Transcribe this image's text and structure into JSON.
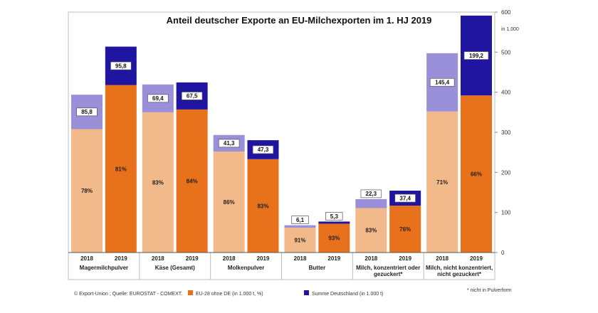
{
  "chart_data": {
    "type": "bar",
    "stacked": true,
    "title": "Anteil deutscher Exporte an EU-Milchexporten im 1. HJ 2019",
    "y_unit": "in 1.000",
    "ylim": [
      0,
      600
    ],
    "y_ticks": [
      0,
      100,
      200,
      300,
      400,
      500,
      600
    ],
    "y_axis_position": "right",
    "grid": false,
    "legend_position": "bottom",
    "groups": [
      {
        "label": "Magermilchpulver",
        "years": [
          "2018",
          "2019"
        ]
      },
      {
        "label": "Käse (Gesamt)",
        "years": [
          "2018",
          "2019"
        ]
      },
      {
        "label": "Molkenpulver",
        "years": [
          "2018",
          "2019"
        ]
      },
      {
        "label": "Butter",
        "years": [
          "2018",
          "2019"
        ]
      },
      {
        "label": "Milch, konzentriert oder gezuckert*",
        "years": [
          "2018",
          "2019"
        ]
      },
      {
        "label": "Milch, nicht konzentriert, nicht gezuckert*",
        "years": [
          "2018",
          "2019"
        ]
      }
    ],
    "categories": [
      "2018",
      "2019",
      "2018",
      "2019",
      "2018",
      "2019",
      "2018",
      "2019",
      "2018",
      "2019",
      "2018",
      "2019"
    ],
    "series": [
      {
        "name": "EU-28 ohne DE (in 1.000 t, %)",
        "values": [
          308,
          418,
          350,
          357,
          252,
          233,
          62,
          72,
          111,
          117,
          352,
          392
        ],
        "labels": [
          "78%",
          "81%",
          "83%",
          "84%",
          "86%",
          "83%",
          "91%",
          "93%",
          "83%",
          "76%",
          "71%",
          "66%"
        ],
        "colors": [
          "#f2b98a",
          "#e8711c"
        ]
      },
      {
        "name": "Summe Deutschland (in 1.000 t)",
        "values": [
          85.8,
          95.8,
          69.4,
          67.5,
          41.3,
          47.3,
          6.1,
          5.3,
          22.3,
          37.4,
          145.4,
          199.2
        ],
        "labels": [
          "85,8",
          "95,8",
          "69,4",
          "67,5",
          "41,3",
          "47,3",
          "6,1",
          "5,3",
          "22,3",
          "37,4",
          "145,4",
          "199,2"
        ],
        "colors": [
          "#9a8fd9",
          "#1f15a0"
        ]
      }
    ],
    "source": "© Export-Union ; Quelle: EUROSTAT  - COMEXT.",
    "footnote": "* nicht in Pulverform"
  }
}
